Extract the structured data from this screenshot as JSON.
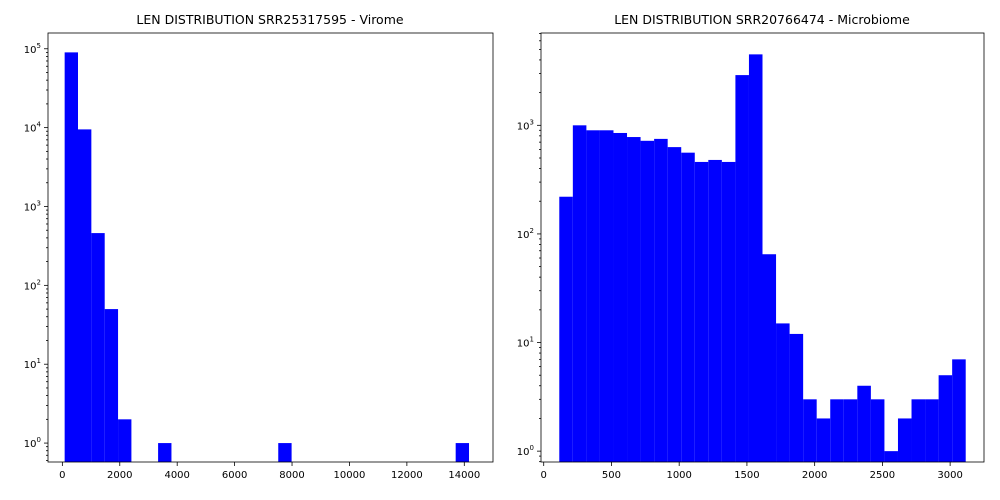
{
  "chart_data": [
    {
      "type": "bar",
      "title": "LEN DISTRIBUTION SRR25317595 - Virome",
      "xlabel": "",
      "ylabel": "",
      "yscale": "log",
      "xlim": [
        -500,
        15000
      ],
      "ylim_exp": [
        -0.24,
        5.2
      ],
      "grid": false,
      "bar_color": "#0000ff",
      "x_ticks": [
        0,
        2000,
        4000,
        6000,
        8000,
        10000,
        12000,
        14000
      ],
      "y_ticks": [
        {
          "exp": 0,
          "base": "10",
          "sup": "0"
        },
        {
          "exp": 1,
          "base": "10",
          "sup": "1"
        },
        {
          "exp": 2,
          "base": "10",
          "sup": "2"
        },
        {
          "exp": 3,
          "base": "10",
          "sup": "3"
        },
        {
          "exp": 4,
          "base": "10",
          "sup": "4"
        },
        {
          "exp": 5,
          "base": "10",
          "sup": "5"
        }
      ],
      "bin_width": 465,
      "bin_starts": [
        80,
        545,
        1010,
        1475,
        1940,
        3335,
        7520,
        13700
      ],
      "values": [
        90000,
        9500,
        460,
        50,
        2,
        1,
        1,
        1
      ]
    },
    {
      "type": "bar",
      "title": "LEN DISTRIBUTION SRR20766474 - Microbiome",
      "xlabel": "",
      "ylabel": "",
      "yscale": "log",
      "xlim": [
        -20,
        3250
      ],
      "ylim_exp": [
        -0.1,
        3.85
      ],
      "grid": false,
      "bar_color": "#0000ff",
      "x_ticks": [
        0,
        500,
        1000,
        1500,
        2000,
        2500,
        3000
      ],
      "y_ticks": [
        {
          "exp": 0,
          "base": "10",
          "sup": "0"
        },
        {
          "exp": 1,
          "base": "10",
          "sup": "1"
        },
        {
          "exp": 2,
          "base": "10",
          "sup": "2"
        },
        {
          "exp": 3,
          "base": "10",
          "sup": "3"
        }
      ],
      "bin_width": 100,
      "bin_starts": [
        115,
        215,
        315,
        415,
        515,
        615,
        715,
        815,
        915,
        1015,
        1115,
        1215,
        1315,
        1415,
        1515,
        1615,
        1715,
        1815,
        1915,
        2015,
        2115,
        2215,
        2315,
        2415,
        2515,
        2615,
        2715,
        2815,
        2915,
        3015
      ],
      "values": [
        220,
        1000,
        900,
        900,
        850,
        780,
        720,
        750,
        630,
        560,
        460,
        480,
        460,
        2900,
        4500,
        65,
        15,
        12,
        3,
        2,
        3,
        3,
        4,
        3,
        1,
        2,
        3,
        3,
        5,
        7
      ]
    }
  ]
}
